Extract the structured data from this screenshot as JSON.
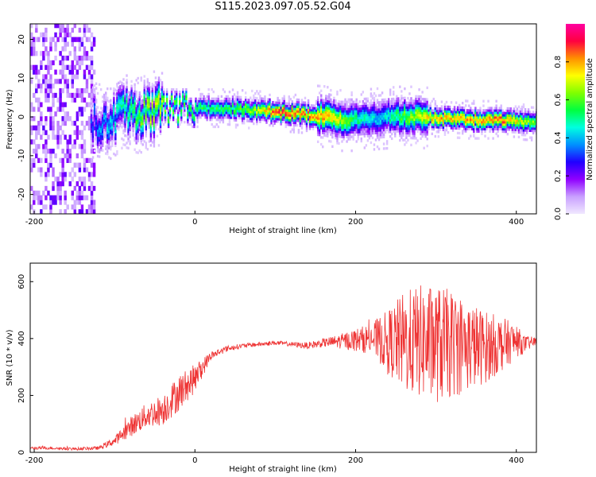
{
  "title": "S115.2023.097.05.52.G04",
  "chart_data": [
    {
      "type": "heatmap",
      "xlabel": "Height of straight line (km)",
      "ylabel": "Frequency (Hz)",
      "xlim": [
        -205,
        425
      ],
      "ylim": [
        -25,
        24
      ],
      "xticks": [
        -200,
        0,
        200,
        400
      ],
      "yticks": [
        -20,
        -10,
        0,
        10,
        20
      ],
      "colorbar": {
        "label": "Normalized spectral amplitude",
        "range": [
          0,
          1
        ],
        "ticks": [
          "0.0",
          "0.2",
          "0.4",
          "0.6",
          "0.8"
        ],
        "colors": [
          "#f0e8ff",
          "#c9a0ff",
          "#9000ff",
          "#2000ff",
          "#0090ff",
          "#00ffe0",
          "#00ff40",
          "#80ff00",
          "#ffff00",
          "#ff9000",
          "#ff0040",
          "#ff00a0"
        ]
      },
      "ridge": {
        "x": [
          -130,
          -110,
          -90,
          -70,
          -50,
          -30,
          0,
          40,
          80,
          100,
          130,
          160,
          180,
          200,
          230,
          260,
          300,
          340,
          380,
          425
        ],
        "center_hz": [
          -1,
          -2,
          1,
          0,
          2,
          2,
          2,
          2,
          1.5,
          1,
          0.5,
          0,
          -1,
          -1,
          -0.5,
          0,
          -0.5,
          -1,
          -1,
          -1.5
        ],
        "peak": [
          0.3,
          0.4,
          0.5,
          0.6,
          0.7,
          0.6,
          0.55,
          0.55,
          0.7,
          0.9,
          0.85,
          0.8,
          0.7,
          0.5,
          0.4,
          0.6,
          0.8,
          0.8,
          0.85,
          0.6
        ]
      },
      "noise_region_x": [
        -205,
        -125
      ]
    },
    {
      "type": "line",
      "xlabel": "Height of straight line (km)",
      "ylabel": "SNR (10 * v/v)",
      "xlim": [
        -205,
        425
      ],
      "ylim": [
        0,
        665
      ],
      "xticks": [
        -200,
        0,
        200,
        400
      ],
      "yticks": [
        0,
        200,
        400,
        600
      ],
      "color": "#ee3333",
      "series": [
        {
          "x": [
            -205,
            -180,
            -150,
            -120,
            -100,
            -80,
            -60,
            -40,
            -20,
            0,
            20,
            40,
            60,
            80,
            100,
            120,
            140,
            160,
            180,
            200,
            220,
            240,
            260,
            280,
            300,
            320,
            340,
            360,
            380,
            400,
            410,
            425
          ],
          "y": [
            15,
            15,
            12,
            15,
            40,
            90,
            130,
            150,
            210,
            260,
            340,
            365,
            375,
            380,
            385,
            380,
            375,
            385,
            390,
            395,
            400,
            390,
            385,
            390,
            380,
            380,
            375,
            370,
            380,
            390,
            380,
            390
          ],
          "spread": [
            5,
            5,
            5,
            6,
            15,
            35,
            45,
            55,
            65,
            50,
            15,
            10,
            8,
            8,
            8,
            8,
            12,
            15,
            25,
            40,
            55,
            110,
            180,
            200,
            210,
            190,
            160,
            130,
            100,
            60,
            30,
            15
          ]
        }
      ]
    }
  ]
}
